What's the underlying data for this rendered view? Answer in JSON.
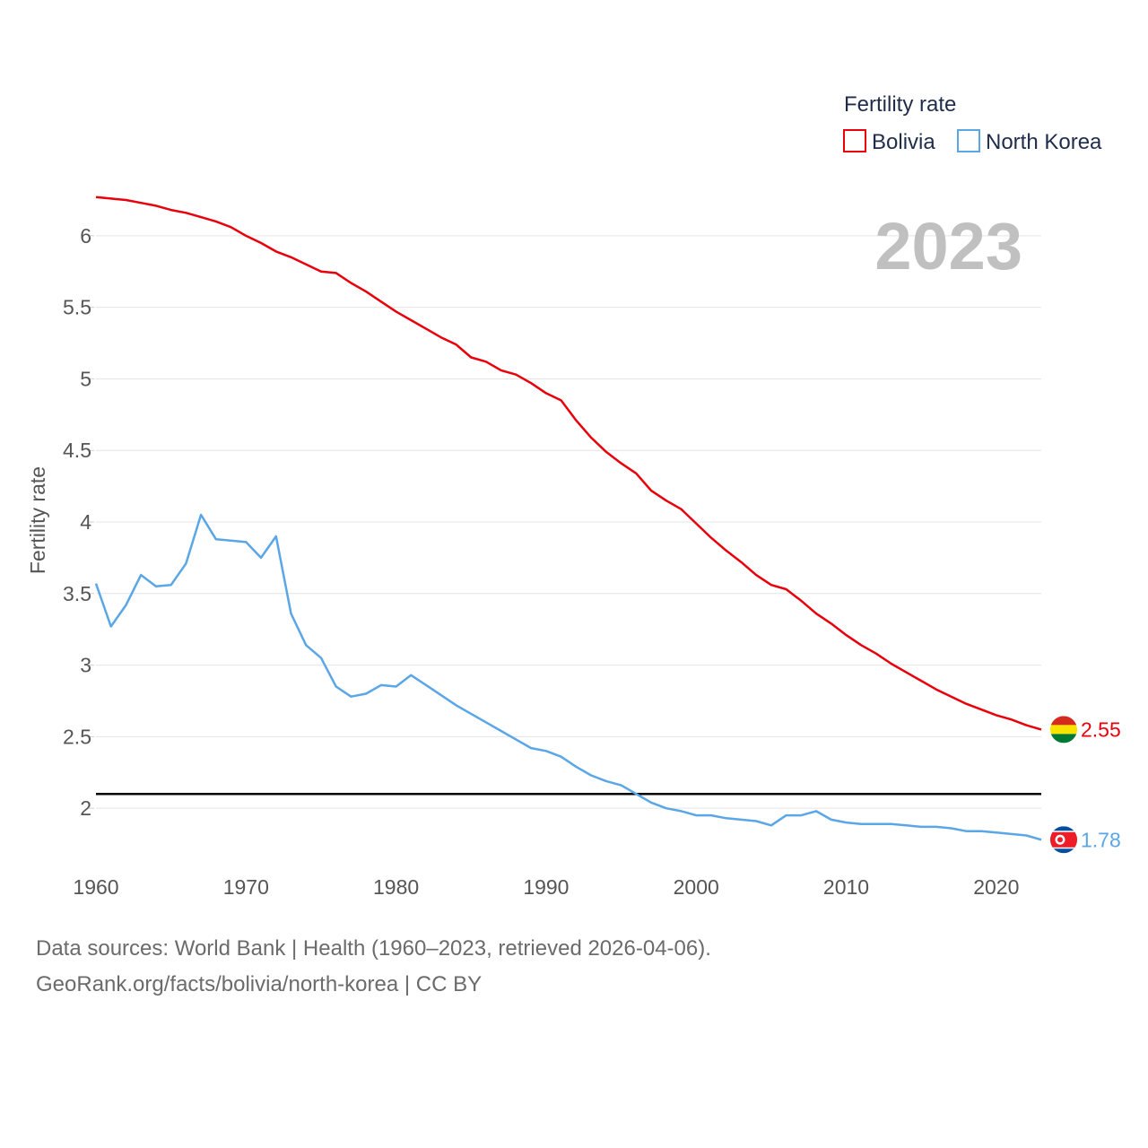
{
  "chart_data": {
    "type": "line",
    "year_label": "2023",
    "ylabel": "Fertility rate",
    "xlabel": "",
    "xlim": [
      1960,
      2023
    ],
    "ylim": [
      1.6,
      6.3
    ],
    "x_ticks": [
      "1960",
      "1970",
      "1980",
      "1990",
      "2000",
      "2010",
      "2020"
    ],
    "y_ticks": [
      "2",
      "2.5",
      "3",
      "3.5",
      "4",
      "4.5",
      "5",
      "5.5",
      "6"
    ],
    "grid": true,
    "legend": {
      "title": "Fertility rate",
      "position": "top-right"
    },
    "reference_line": {
      "y": 2.1,
      "color": "#000000"
    },
    "x": [
      1960,
      1961,
      1962,
      1963,
      1964,
      1965,
      1966,
      1967,
      1968,
      1969,
      1970,
      1971,
      1972,
      1973,
      1974,
      1975,
      1976,
      1977,
      1978,
      1979,
      1980,
      1981,
      1982,
      1983,
      1984,
      1985,
      1986,
      1987,
      1988,
      1989,
      1990,
      1991,
      1992,
      1993,
      1994,
      1995,
      1996,
      1997,
      1998,
      1999,
      2000,
      2001,
      2002,
      2003,
      2004,
      2005,
      2006,
      2007,
      2008,
      2009,
      2010,
      2011,
      2012,
      2013,
      2014,
      2015,
      2016,
      2017,
      2018,
      2019,
      2020,
      2021,
      2022,
      2023
    ],
    "series": [
      {
        "name": "Bolivia",
        "color": "#e8000b",
        "flag": "bolivia-flag-icon",
        "end_value_label": "2.55",
        "values": [
          6.27,
          6.26,
          6.25,
          6.23,
          6.21,
          6.18,
          6.16,
          6.13,
          6.1,
          6.06,
          6.0,
          5.95,
          5.89,
          5.85,
          5.8,
          5.75,
          5.74,
          5.67,
          5.61,
          5.54,
          5.47,
          5.41,
          5.35,
          5.29,
          5.24,
          5.15,
          5.12,
          5.06,
          5.03,
          4.97,
          4.9,
          4.85,
          4.71,
          4.59,
          4.49,
          4.41,
          4.34,
          4.22,
          4.15,
          4.09,
          3.99,
          3.89,
          3.8,
          3.72,
          3.63,
          3.56,
          3.53,
          3.45,
          3.36,
          3.29,
          3.21,
          3.14,
          3.08,
          3.01,
          2.95,
          2.89,
          2.83,
          2.78,
          2.73,
          2.69,
          2.65,
          2.62,
          2.58,
          2.55
        ]
      },
      {
        "name": "North Korea",
        "color": "#5aa6e6",
        "flag": "north-korea-flag-icon",
        "end_value_label": "1.78",
        "values": [
          3.57,
          3.27,
          3.42,
          3.63,
          3.55,
          3.56,
          3.71,
          4.05,
          3.88,
          3.87,
          3.86,
          3.75,
          3.9,
          3.36,
          3.14,
          3.05,
          2.85,
          2.78,
          2.8,
          2.86,
          2.85,
          2.93,
          2.86,
          2.79,
          2.72,
          2.66,
          2.6,
          2.54,
          2.48,
          2.42,
          2.4,
          2.36,
          2.29,
          2.23,
          2.19,
          2.16,
          2.1,
          2.04,
          2.0,
          1.98,
          1.95,
          1.95,
          1.93,
          1.92,
          1.91,
          1.88,
          1.95,
          1.95,
          1.98,
          1.92,
          1.9,
          1.89,
          1.89,
          1.89,
          1.88,
          1.87,
          1.87,
          1.86,
          1.84,
          1.84,
          1.83,
          1.82,
          1.81,
          1.78
        ]
      }
    ]
  },
  "footer": {
    "line1": "Data sources: World Bank | Health (1960–2023, retrieved 2026-04-06).",
    "line2": "GeoRank.org/facts/bolivia/north-korea | CC BY"
  }
}
